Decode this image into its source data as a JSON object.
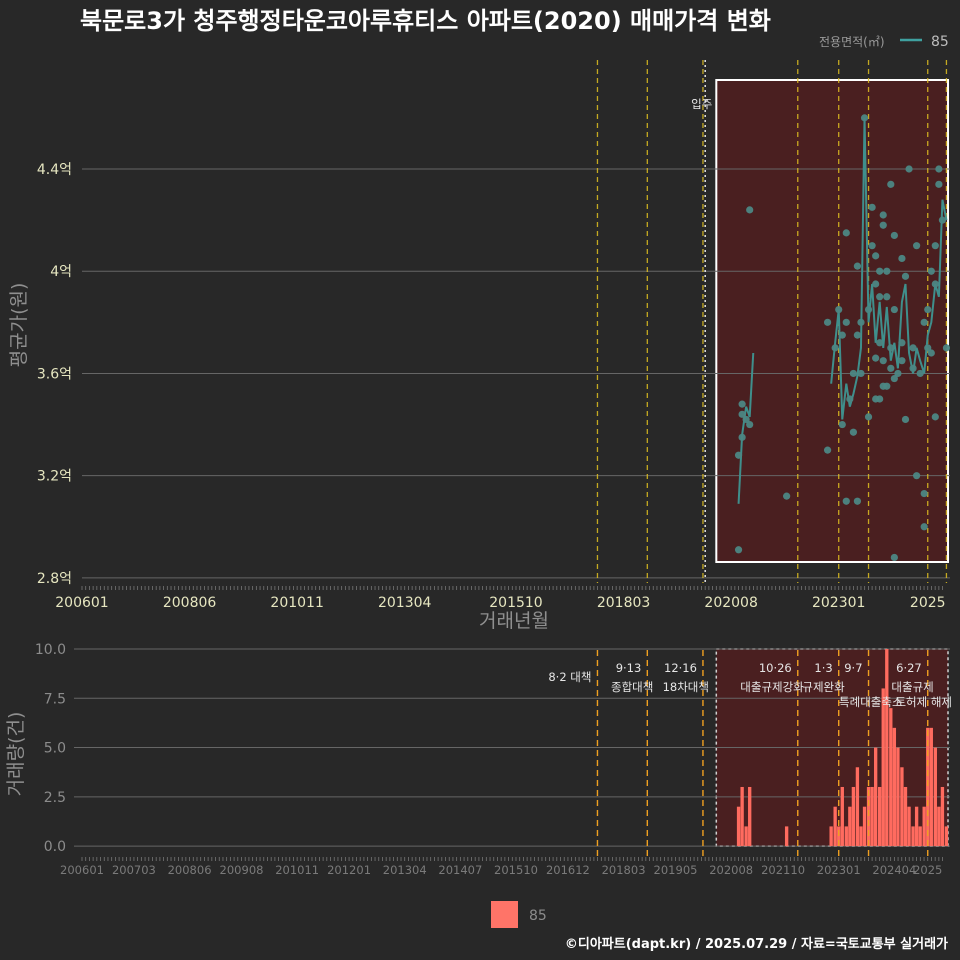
{
  "title": "북문로3가 청주행정타운코아루휴티스 아파트(2020) 매매가격 변화",
  "legend_top": {
    "title": "전용면적(㎡)",
    "label": "85",
    "color": "#3fa1a0"
  },
  "legend_bottom": {
    "label": "85",
    "color": "#ff7468"
  },
  "caption": "©디아파트(dapt.kr) / 2025.07.29 / 자료=국토교통부 실거래가",
  "colors": {
    "background": "#282828",
    "highlight": "#4a1f20",
    "policy_line": "#e0c020",
    "bar": "#ff6b5f",
    "line": "#3f8f8c",
    "point": "#4c8784",
    "grid": "#666666"
  },
  "chart_data": [
    {
      "type": "line",
      "ylabel": "평균가(원)",
      "xlabel": "거래년월",
      "ylim": [
        2.78,
        4.85
      ],
      "y_ticks": [
        {
          "value": 2.8,
          "label": "2.8억"
        },
        {
          "value": 3.2,
          "label": "3.2억"
        },
        {
          "value": 3.6,
          "label": "3.6억"
        },
        {
          "value": 4.0,
          "label": "4억"
        },
        {
          "value": 4.4,
          "label": "4.4억"
        }
      ],
      "x_ticks": [
        "200601",
        "200806",
        "201011",
        "201304",
        "201510",
        "201803",
        "202008",
        "202301",
        "2025"
      ],
      "annotation": "입주",
      "series": [
        {
          "name": "85",
          "line": [
            [
              2020.75,
              3.09
            ],
            [
              2020.83,
              3.36
            ],
            [
              2020.92,
              3.47
            ],
            [
              2021.0,
              3.43
            ],
            [
              2021.08,
              3.68
            ],
            [
              2022.83,
              3.56
            ],
            [
              2022.92,
              3.72
            ],
            [
              2023.0,
              3.85
            ],
            [
              2023.08,
              3.42
            ],
            [
              2023.17,
              3.56
            ],
            [
              2023.25,
              3.47
            ],
            [
              2023.33,
              3.52
            ],
            [
              2023.42,
              3.59
            ],
            [
              2023.5,
              3.7
            ],
            [
              2023.58,
              4.6
            ],
            [
              2023.67,
              3.8
            ],
            [
              2023.75,
              3.95
            ],
            [
              2023.83,
              3.72
            ],
            [
              2023.92,
              3.88
            ],
            [
              2024.0,
              3.7
            ],
            [
              2024.08,
              3.86
            ],
            [
              2024.17,
              3.65
            ],
            [
              2024.25,
              3.72
            ],
            [
              2024.33,
              3.62
            ],
            [
              2024.42,
              3.88
            ],
            [
              2024.5,
              3.95
            ],
            [
              2024.58,
              3.68
            ],
            [
              2024.67,
              3.6
            ],
            [
              2024.75,
              3.7
            ],
            [
              2024.83,
              3.65
            ],
            [
              2024.92,
              3.6
            ],
            [
              2025.0,
              3.75
            ],
            [
              2025.08,
              3.8
            ],
            [
              2025.17,
              3.95
            ],
            [
              2025.25,
              3.9
            ],
            [
              2025.33,
              4.28
            ],
            [
              2025.42,
              4.2
            ]
          ],
          "points": [
            [
              2020.75,
              2.91
            ],
            [
              2020.75,
              3.28
            ],
            [
              2020.83,
              3.35
            ],
            [
              2020.83,
              3.44
            ],
            [
              2020.83,
              3.48
            ],
            [
              2020.92,
              3.42
            ],
            [
              2021.0,
              3.4
            ],
            [
              2021.0,
              4.24
            ],
            [
              2021.83,
              3.12
            ],
            [
              2022.75,
              3.3
            ],
            [
              2022.75,
              3.8
            ],
            [
              2022.92,
              3.7
            ],
            [
              2023.0,
              3.85
            ],
            [
              2023.08,
              3.4
            ],
            [
              2023.08,
              3.75
            ],
            [
              2023.17,
              3.1
            ],
            [
              2023.17,
              3.8
            ],
            [
              2023.17,
              4.15
            ],
            [
              2023.25,
              3.5
            ],
            [
              2023.33,
              3.6
            ],
            [
              2023.33,
              3.37
            ],
            [
              2023.42,
              3.1
            ],
            [
              2023.42,
              4.02
            ],
            [
              2023.42,
              3.75
            ],
            [
              2023.5,
              3.8
            ],
            [
              2023.5,
              3.6
            ],
            [
              2023.58,
              4.6
            ],
            [
              2023.67,
              3.43
            ],
            [
              2023.67,
              3.85
            ],
            [
              2023.75,
              4.25
            ],
            [
              2023.75,
              4.1
            ],
            [
              2023.83,
              3.5
            ],
            [
              2023.83,
              3.66
            ],
            [
              2023.83,
              3.95
            ],
            [
              2023.83,
              4.06
            ],
            [
              2023.92,
              3.5
            ],
            [
              2023.92,
              3.72
            ],
            [
              2023.92,
              3.9
            ],
            [
              2023.92,
              4.0
            ],
            [
              2024.0,
              3.55
            ],
            [
              2024.0,
              3.65
            ],
            [
              2024.0,
              4.18
            ],
            [
              2024.0,
              4.22
            ],
            [
              2024.08,
              3.55
            ],
            [
              2024.08,
              3.9
            ],
            [
              2024.08,
              4.0
            ],
            [
              2024.17,
              3.62
            ],
            [
              2024.17,
              3.7
            ],
            [
              2024.17,
              4.34
            ],
            [
              2024.25,
              2.88
            ],
            [
              2024.25,
              3.58
            ],
            [
              2024.25,
              3.85
            ],
            [
              2024.25,
              4.14
            ],
            [
              2024.33,
              3.6
            ],
            [
              2024.42,
              3.65
            ],
            [
              2024.42,
              3.72
            ],
            [
              2024.42,
              4.05
            ],
            [
              2024.5,
              3.42
            ],
            [
              2024.5,
              3.98
            ],
            [
              2024.58,
              4.4
            ],
            [
              2024.67,
              3.62
            ],
            [
              2024.67,
              3.7
            ],
            [
              2024.75,
              3.2
            ],
            [
              2024.75,
              4.1
            ],
            [
              2024.83,
              3.6
            ],
            [
              2024.92,
              3.0
            ],
            [
              2024.92,
              3.13
            ],
            [
              2024.92,
              3.8
            ],
            [
              2025.0,
              3.7
            ],
            [
              2025.0,
              3.85
            ],
            [
              2025.08,
              3.68
            ],
            [
              2025.08,
              4.0
            ],
            [
              2025.17,
              3.43
            ],
            [
              2025.17,
              3.95
            ],
            [
              2025.17,
              4.1
            ],
            [
              2025.25,
              4.34
            ],
            [
              2025.25,
              4.4
            ],
            [
              2025.33,
              4.2
            ],
            [
              2025.42,
              3.7
            ]
          ]
        }
      ]
    },
    {
      "type": "bar",
      "ylabel": "거래량(건)",
      "ylim": [
        -0.4,
        10.0
      ],
      "y_ticks": [
        {
          "value": 0,
          "label": "0.0"
        },
        {
          "value": 2.5,
          "label": "2.5"
        },
        {
          "value": 5,
          "label": "5.0"
        },
        {
          "value": 7.5,
          "label": "7.5"
        },
        {
          "value": 10,
          "label": "10.0"
        }
      ],
      "x_ticks": [
        "200601",
        "200703",
        "200806",
        "200908",
        "201011",
        "201201",
        "201304",
        "201407",
        "201510",
        "201612",
        "201803",
        "201905",
        "202008",
        "202110",
        "202301",
        "202404",
        "2025"
      ],
      "series": [
        {
          "name": "85",
          "values": [
            [
              2020.75,
              2
            ],
            [
              2020.83,
              3
            ],
            [
              2020.92,
              1
            ],
            [
              2021.0,
              3
            ],
            [
              2021.83,
              1
            ],
            [
              2022.83,
              1
            ],
            [
              2022.92,
              2
            ],
            [
              2023.0,
              1
            ],
            [
              2023.08,
              3
            ],
            [
              2023.17,
              1
            ],
            [
              2023.25,
              2
            ],
            [
              2023.33,
              3
            ],
            [
              2023.42,
              4
            ],
            [
              2023.5,
              1
            ],
            [
              2023.58,
              2
            ],
            [
              2023.67,
              3
            ],
            [
              2023.75,
              3
            ],
            [
              2023.83,
              5
            ],
            [
              2023.92,
              3
            ],
            [
              2024.0,
              8
            ],
            [
              2024.08,
              10
            ],
            [
              2024.17,
              7
            ],
            [
              2024.25,
              6
            ],
            [
              2024.33,
              5
            ],
            [
              2024.42,
              4
            ],
            [
              2024.5,
              3
            ],
            [
              2024.58,
              2
            ],
            [
              2024.67,
              1
            ],
            [
              2024.75,
              2
            ],
            [
              2024.83,
              1
            ],
            [
              2024.92,
              2
            ],
            [
              2025.0,
              6
            ],
            [
              2025.08,
              6
            ],
            [
              2025.17,
              5
            ],
            [
              2025.25,
              2
            ],
            [
              2025.33,
              3
            ],
            [
              2025.42,
              1
            ]
          ]
        }
      ],
      "events": [
        {
          "x": 2017.58,
          "label": "8·2 대책",
          "label2": ""
        },
        {
          "x": 2018.7,
          "label": "9·13",
          "label2": "종합대책"
        },
        {
          "x": 2019.95,
          "label": "12·16",
          "label2": "18차대책"
        },
        {
          "x": 2022.08,
          "label": "10·26",
          "label2": "대출규제강화"
        },
        {
          "x": 2023.0,
          "label": "1·3",
          "label2": "규제완화"
        },
        {
          "x": 2023.67,
          "label": "9·7",
          "label2": "특례대출축소"
        },
        {
          "x": 2025.0,
          "label": "6·27",
          "label2": "대출규제"
        }
      ]
    }
  ],
  "event_labels_extra": [
    "토허제 해제"
  ]
}
